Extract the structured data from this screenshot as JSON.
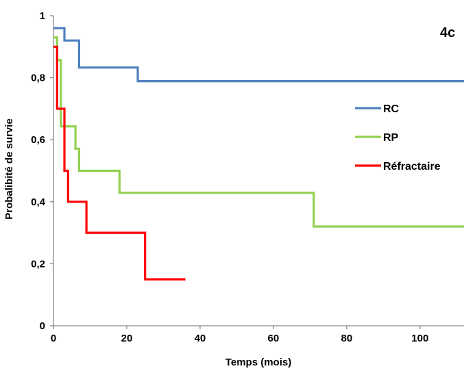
{
  "chart_data": {
    "type": "line",
    "step": true,
    "panel_label": "4c",
    "xlabel": "Temps (mois)",
    "ylabel": "Probalibité de survie",
    "xlim": [
      0,
      112
    ],
    "ylim": [
      0,
      1
    ],
    "x_ticks": [
      0,
      20,
      40,
      60,
      80,
      100
    ],
    "x_tick_labels": [
      "0",
      "20",
      "40",
      "60",
      "80",
      "100"
    ],
    "y_ticks": [
      0,
      0.2,
      0.4,
      0.6,
      0.8,
      1
    ],
    "y_tick_labels": [
      "0",
      "0,2",
      "0,4",
      "0,6",
      "0,8",
      "1"
    ],
    "grid": false,
    "legend_position": "right",
    "series": [
      {
        "name": "RC",
        "color": "#4f81bd",
        "points": [
          [
            0,
            0.96
          ],
          [
            3,
            0.96
          ],
          [
            3,
            0.92
          ],
          [
            7,
            0.92
          ],
          [
            7,
            0.833
          ],
          [
            23,
            0.833
          ],
          [
            23,
            0.789
          ],
          [
            112,
            0.789
          ]
        ]
      },
      {
        "name": "RP",
        "color": "#92d050",
        "points": [
          [
            0,
            0.93
          ],
          [
            1,
            0.93
          ],
          [
            1,
            0.857
          ],
          [
            2,
            0.857
          ],
          [
            2,
            0.643
          ],
          [
            6,
            0.643
          ],
          [
            6,
            0.571
          ],
          [
            7,
            0.571
          ],
          [
            7,
            0.5
          ],
          [
            18,
            0.5
          ],
          [
            18,
            0.429
          ],
          [
            71,
            0.429
          ],
          [
            71,
            0.32
          ],
          [
            112,
            0.32
          ]
        ]
      },
      {
        "name": "Réfractaire",
        "color": "#ff0000",
        "points": [
          [
            0,
            0.9
          ],
          [
            1,
            0.9
          ],
          [
            1,
            0.7
          ],
          [
            3,
            0.7
          ],
          [
            3,
            0.5
          ],
          [
            4,
            0.5
          ],
          [
            4,
            0.4
          ],
          [
            9,
            0.4
          ],
          [
            9,
            0.3
          ],
          [
            25,
            0.3
          ],
          [
            25,
            0.15
          ],
          [
            36,
            0.15
          ]
        ]
      }
    ]
  }
}
